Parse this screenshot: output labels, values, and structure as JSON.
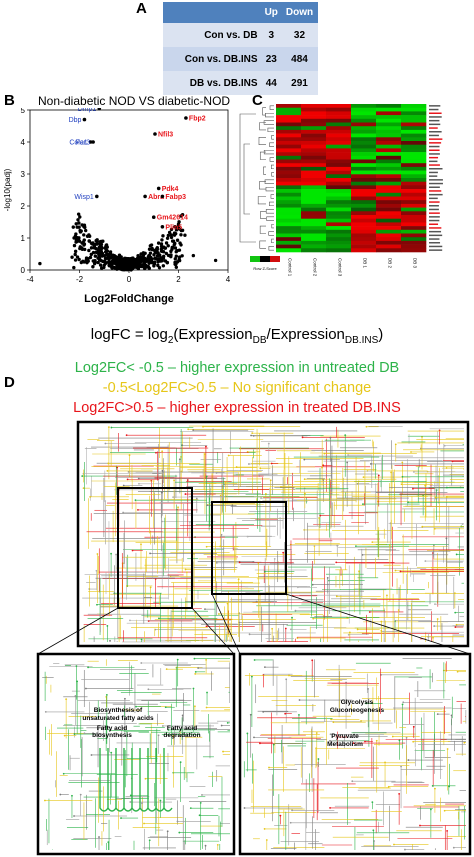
{
  "panel_a": {
    "label": "A",
    "headers": [
      "",
      "Up",
      "Down"
    ],
    "rows": [
      {
        "comparison": "Con vs. DB",
        "up": "3",
        "down": "32"
      },
      {
        "comparison": "Con vs. DB.INS",
        "up": "23",
        "down": "484"
      },
      {
        "comparison": "DB vs. DB.INS",
        "up": "44",
        "down": "291"
      }
    ]
  },
  "panel_b": {
    "label": "B",
    "title": "Non-diabetic NOD VS diabetic-NOD",
    "xlabel": "Log2FoldChange",
    "ylabel": "-log10(padj)"
  },
  "panel_c": {
    "label": "C",
    "key_label": "Row Z-Score",
    "columns": [
      "Control 1",
      "Control 2",
      "Control 3",
      "DB 1",
      "DB 2",
      "DB 3"
    ]
  },
  "formula": {
    "lhs": "logFC = log",
    "sub1": "2",
    "open": "(Expression",
    "sub2": "DB",
    "slash": "/Expression",
    "sub3": "DB.INS",
    "close": ")"
  },
  "panel_d": {
    "label": "D",
    "legend": [
      {
        "text": "Log2FC< -0.5 – higher expression in untreated DB",
        "color": "#2db34a"
      },
      {
        "text": "-0.5<Log2FC>0.5 – No significant change",
        "color": "#e6c619"
      },
      {
        "text": "Log2FC>0.5 – higher expression in treated DB.INS",
        "color": "#e8151b"
      }
    ],
    "zoom_left_labels": [
      "Biosynthesis of",
      "unsaturated fatty acids",
      "Fatty acid",
      "biosynthesis",
      "Fatty acid",
      "degradation"
    ],
    "zoom_right_labels": [
      "Glycolysis",
      "Gluconeogenesis",
      "Pyruvate",
      "Metabolism"
    ]
  },
  "chart_data": {
    "type": "scatter",
    "title": "Non-diabetic NOD VS diabetic-NOD",
    "xlabel": "Log2FoldChange",
    "ylabel": "-log10(padj)",
    "xlim": [
      -4,
      4
    ],
    "ylim": [
      0,
      5
    ],
    "x_ticks": [
      "-4",
      "-2",
      "0",
      "2",
      "4"
    ],
    "y_ticks": [
      "0",
      "1",
      "2",
      "3",
      "4",
      "5"
    ],
    "labeled_points": [
      {
        "gene": "Dmp1",
        "x": -1.2,
        "y": 5.05,
        "color": "#1f3fbf"
      },
      {
        "gene": "Dbp",
        "x": -1.8,
        "y": 4.7,
        "color": "#1f3fbf"
      },
      {
        "gene": "Cola1",
        "x": -1.55,
        "y": 4.0,
        "color": "#1f3fbf"
      },
      {
        "gene": "Per3",
        "x": -1.45,
        "y": 4.0,
        "color": "#1f3fbf"
      },
      {
        "gene": "Wisp1",
        "x": -1.3,
        "y": 2.3,
        "color": "#1f3fbf"
      },
      {
        "gene": "Fbp2",
        "x": 2.3,
        "y": 4.75,
        "color": "#e8151b"
      },
      {
        "gene": "Nfil3",
        "x": 1.05,
        "y": 4.25,
        "color": "#e8151b"
      },
      {
        "gene": "Pdk4",
        "x": 1.2,
        "y": 2.55,
        "color": "#e8151b"
      },
      {
        "gene": "Abra",
        "x": 0.65,
        "y": 2.3,
        "color": "#e8151b"
      },
      {
        "gene": "Fabp3",
        "x": 1.35,
        "y": 2.3,
        "color": "#e8151b"
      },
      {
        "gene": "Gm42614",
        "x": 1.0,
        "y": 1.65,
        "color": "#e8151b"
      },
      {
        "gene": "Plin5",
        "x": 1.35,
        "y": 1.35,
        "color": "#e8151b"
      }
    ]
  }
}
